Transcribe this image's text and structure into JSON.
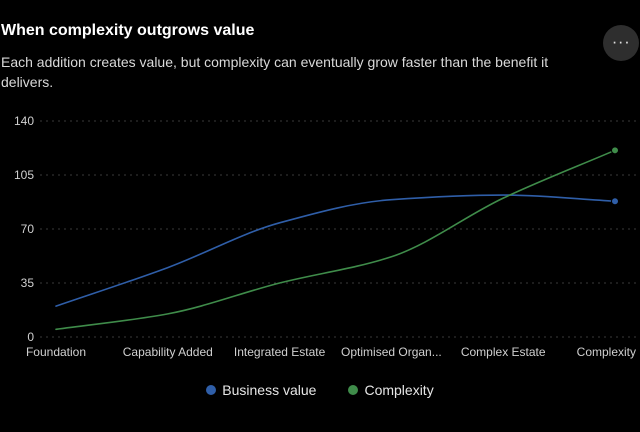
{
  "header": {
    "title": "When complexity outgrows value",
    "subtitle": "Each addition creates value, but complexity can eventually grow faster than the benefit it delivers.",
    "menu_icon": "more-horizontal-icon",
    "menu_glyph": "···"
  },
  "colors": {
    "business_value": "#2f5ea8",
    "complexity": "#3f8c4a",
    "gridline": "#3a3a3a"
  },
  "chart_data": {
    "type": "line",
    "categories": [
      "Foundation",
      "Capability Added",
      "Integrated Estate",
      "Optimised Organ...",
      "Complex Estate",
      "Complexity Ec"
    ],
    "series": [
      {
        "name": "Business value",
        "values": [
          20,
          45,
          74,
          89,
          92,
          88
        ]
      },
      {
        "name": "Complexity",
        "values": [
          5,
          15,
          35,
          52,
          90,
          121
        ]
      }
    ],
    "yticks": [
      0,
      35,
      70,
      105,
      140
    ],
    "ylim": [
      0,
      140
    ],
    "title": "",
    "xlabel": "",
    "ylabel": "",
    "grid": "horizontal dotted",
    "legend_position": "bottom-center",
    "smooth": true,
    "end_markers": true
  }
}
